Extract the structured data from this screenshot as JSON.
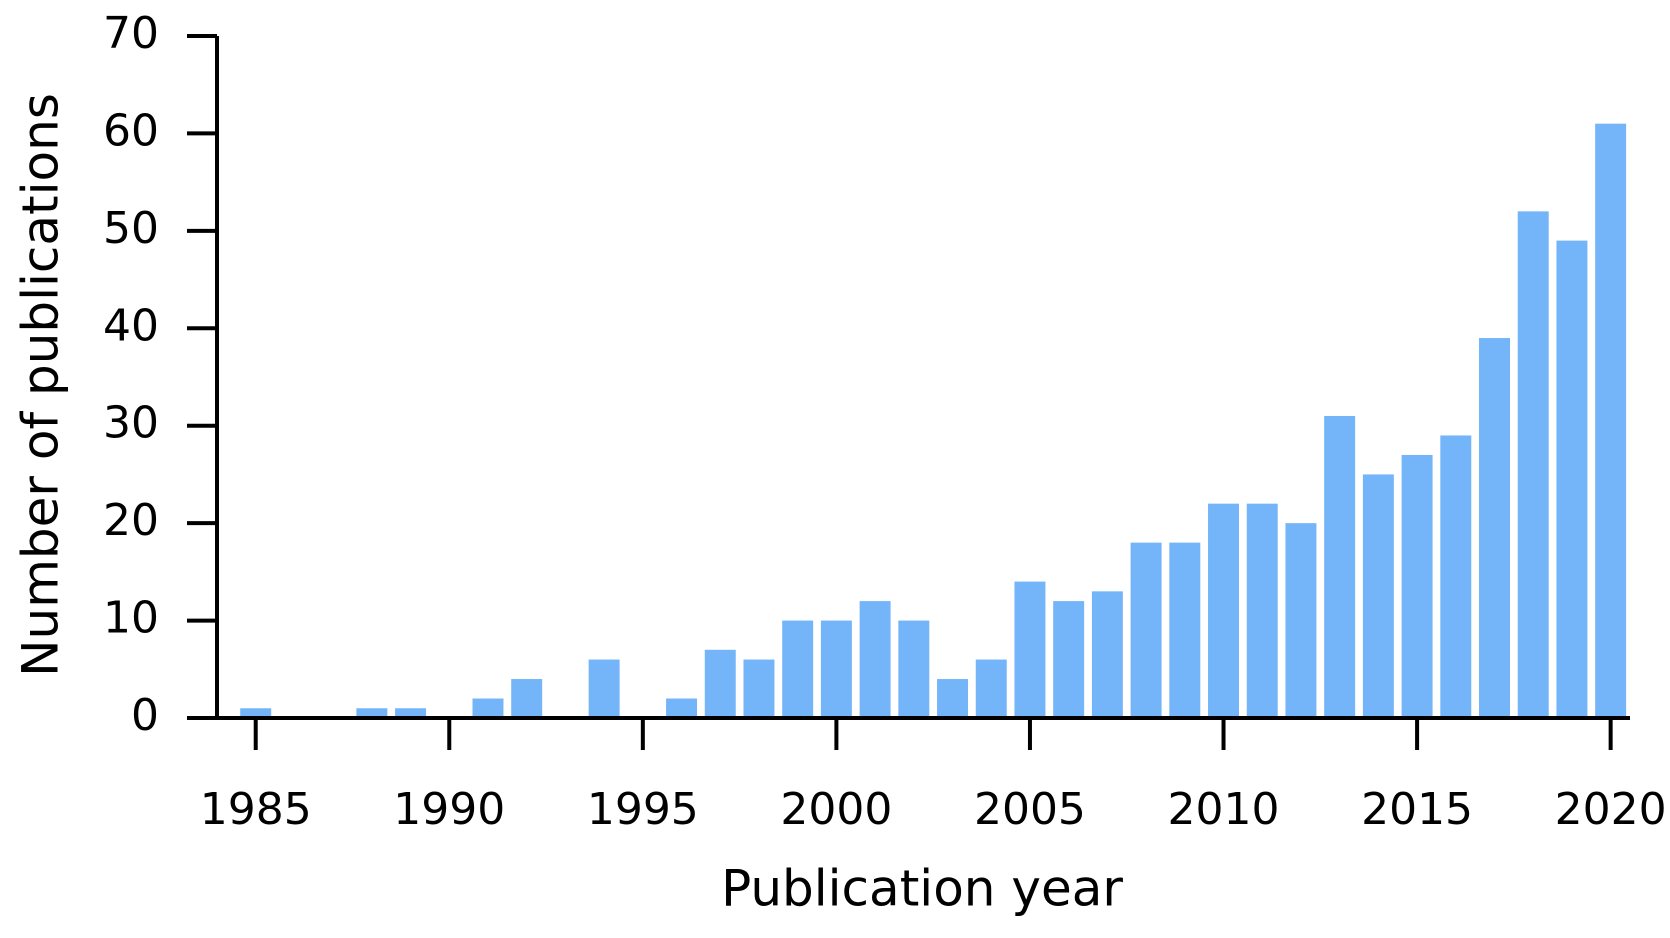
{
  "chart_data": {
    "type": "bar",
    "x_label": "Publication year",
    "y_label": "Number of publications",
    "x": [
      1985,
      1986,
      1987,
      1988,
      1989,
      1990,
      1991,
      1992,
      1993,
      1994,
      1995,
      1996,
      1997,
      1998,
      1999,
      2000,
      2001,
      2002,
      2003,
      2004,
      2005,
      2006,
      2007,
      2008,
      2009,
      2010,
      2011,
      2012,
      2013,
      2014,
      2015,
      2016,
      2017,
      2018,
      2019,
      2020
    ],
    "values": [
      1,
      0,
      0,
      1,
      1,
      0,
      2,
      4,
      0,
      6,
      0,
      2,
      7,
      6,
      10,
      10,
      12,
      10,
      4,
      6,
      14,
      12,
      13,
      18,
      18,
      22,
      22,
      20,
      31,
      25,
      27,
      29,
      39,
      52,
      49,
      61
    ],
    "color": "#74b5f9",
    "xlim": [
      1984,
      2020.5
    ],
    "xticks": [
      1985,
      1990,
      1995,
      2000,
      2005,
      2010,
      2015,
      2020
    ],
    "ylim": [
      0,
      70
    ],
    "yticks": [
      0,
      10,
      20,
      30,
      40,
      50,
      60,
      70
    ],
    "grid": false
  }
}
